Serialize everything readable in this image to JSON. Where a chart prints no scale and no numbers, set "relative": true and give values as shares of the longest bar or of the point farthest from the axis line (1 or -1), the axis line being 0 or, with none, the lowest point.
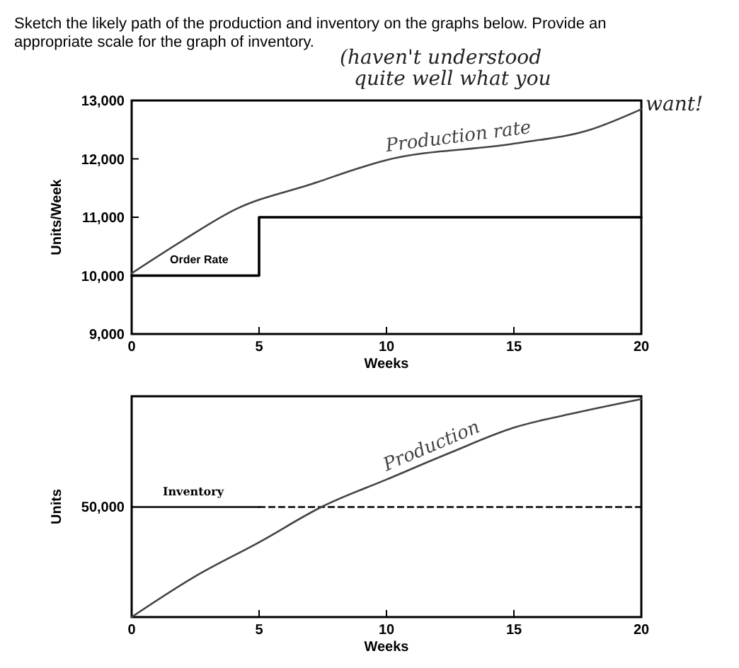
{
  "chart_data": [
    {
      "type": "line",
      "title": "Sketch the likely path of the production and inventory on the graphs below. Provide an appropriate scale for the graph of inventory.",
      "annotations": [
        "(haven't understood quite well what you want!"
      ],
      "xlabel": "Weeks",
      "ylabel": "Units/Week",
      "xlim": [
        0,
        20
      ],
      "xticks": [
        0,
        5,
        10,
        15,
        20
      ],
      "ylim": [
        9000,
        13000
      ],
      "yticks": [
        {
          "value": 9000,
          "label": "9,000"
        },
        {
          "value": 10000,
          "label": "10,000"
        },
        {
          "value": 11000,
          "label": "11,000"
        },
        {
          "value": 12000,
          "label": "12,000"
        },
        {
          "value": 13000,
          "label": "13,000"
        }
      ],
      "grid": false,
      "series": [
        {
          "name": "Order Rate",
          "type": "step",
          "color": "#000000",
          "x": [
            0,
            5,
            20
          ],
          "values": [
            10000,
            11000,
            11000
          ]
        },
        {
          "name": "Production rate",
          "color": "#444444",
          "x": [
            0,
            2,
            4.1,
            7,
            10,
            15,
            18,
            20
          ],
          "values": [
            10040,
            10600,
            11140,
            11560,
            11980,
            12260,
            12500,
            12850
          ]
        }
      ]
    },
    {
      "type": "line",
      "xlabel": "Weeks",
      "ylabel": "Units",
      "relative": true,
      "annotations": [
        "50,000"
      ],
      "xlim": [
        0,
        20
      ],
      "xticks": [
        0,
        5,
        10,
        15,
        20
      ],
      "grid": false,
      "series": [
        {
          "name": "Inventory",
          "color": "#000000",
          "x": [
            0,
            5
          ],
          "values": [
            0.505,
            0.505
          ]
        },
        {
          "color": "#000000",
          "line_style": "dashed",
          "x": [
            5,
            20
          ],
          "values": [
            0.505,
            0.505
          ]
        },
        {
          "name": "Production",
          "color": "#444444",
          "x": [
            0,
            2.5,
            5,
            7.5,
            10,
            12.5,
            15,
            17.5,
            20
          ],
          "values": [
            0,
            0.187,
            0.343,
            0.508,
            0.631,
            0.754,
            0.869,
            0.939,
            1
          ]
        }
      ]
    }
  ]
}
